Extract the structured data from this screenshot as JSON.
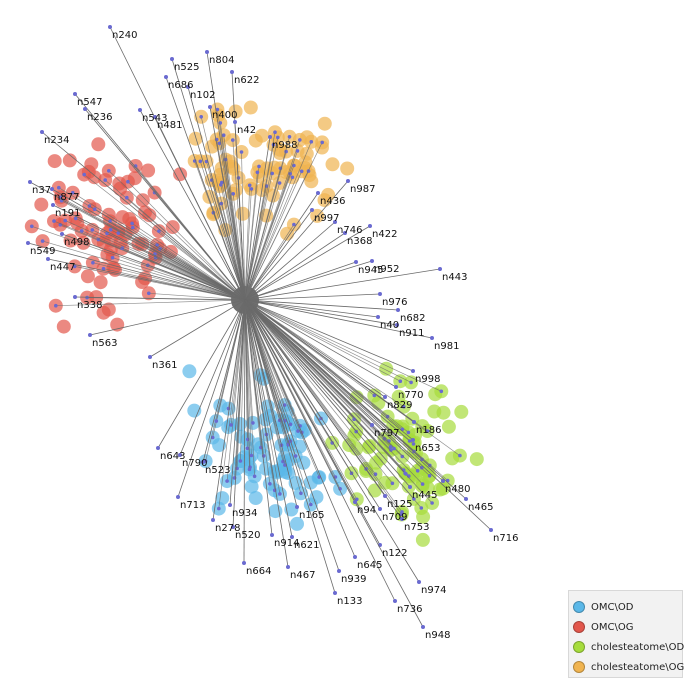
{
  "graph": {
    "groups": [
      {
        "key": "OMC_OD",
        "label": "OMC\\OD",
        "color": "#5bb8e8"
      },
      {
        "key": "OMC_OG",
        "label": "OMC\\OG",
        "color": "#e2574c"
      },
      {
        "key": "chol_OD",
        "label": "cholesteatome\\OD",
        "color": "#a6dc3c"
      },
      {
        "key": "chol_OG",
        "label": "cholesteatome\\OG",
        "color": "#f0b450"
      }
    ],
    "edge_color": "#6a6a6a",
    "arrow_color": "#6a6ad0",
    "node_labels": [
      "n240",
      "n804",
      "n525",
      "n622",
      "n686",
      "n102",
      "n547",
      "n236",
      "n543",
      "n481",
      "n400",
      "n42",
      "n234",
      "n988",
      "n37",
      "n877",
      "n191",
      "n987",
      "n436",
      "n997",
      "n746",
      "n422",
      "n368",
      "n498",
      "n549",
      "n447",
      "n952",
      "n443",
      "n945",
      "n976",
      "n682",
      "n338",
      "n40",
      "n911",
      "n563",
      "n981",
      "n361",
      "n998",
      "n770",
      "n186",
      "n653",
      "n643",
      "n790",
      "n445",
      "n480",
      "n465",
      "n713",
      "n523",
      "n934",
      "n753",
      "n278",
      "n520",
      "n716",
      "n914",
      "n621",
      "n467",
      "n645",
      "n122",
      "n664",
      "n939",
      "n974",
      "n133",
      "n736",
      "n948",
      "n165",
      "n709",
      "n94",
      "n125",
      "n797",
      "n829"
    ],
    "legend": [
      {
        "label": "OMC\\OD",
        "color": "#5bb8e8"
      },
      {
        "label": "OMC\\OG",
        "color": "#e2574c"
      },
      {
        "label": "cholesteatome\\OD",
        "color": "#a6dc3c"
      },
      {
        "label": "cholesteatome\\OG",
        "color": "#f0b450"
      }
    ]
  }
}
